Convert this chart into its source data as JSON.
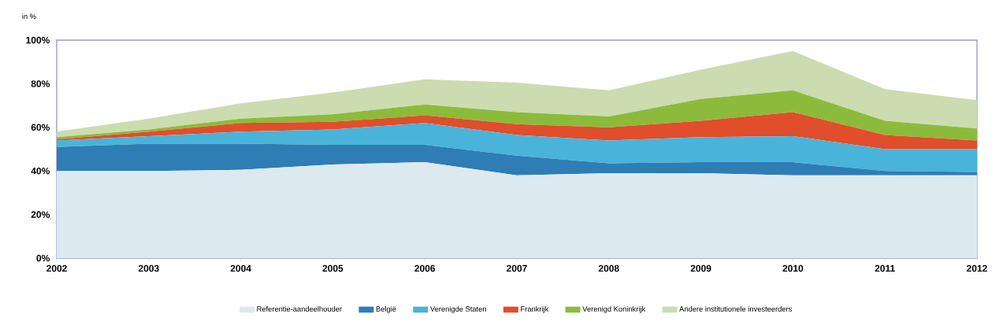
{
  "chart_data": {
    "type": "area",
    "stacked": true,
    "ylabel": "in %",
    "x": [
      2002,
      2003,
      2004,
      2005,
      2006,
      2007,
      2008,
      2009,
      2010,
      2011,
      2012
    ],
    "xlim": [
      2002,
      2012
    ],
    "xticks": [
      2002,
      2003,
      2004,
      2005,
      2006,
      2007,
      2008,
      2009,
      2010,
      2011,
      2012
    ],
    "ylim": [
      0,
      100
    ],
    "yticks": [
      {
        "value": 0,
        "label": "0%"
      },
      {
        "value": 20,
        "label": "20%"
      },
      {
        "value": 40,
        "label": "40%"
      },
      {
        "value": 60,
        "label": "60%"
      },
      {
        "value": 80,
        "label": "80%"
      },
      {
        "value": 100,
        "label": "100%"
      }
    ],
    "legend": "bottom",
    "series": [
      {
        "name": "Referentie-aandeelhouder",
        "color": "#dce9ef",
        "values": [
          40,
          40,
          40.5,
          43,
          44,
          38,
          39,
          39,
          38,
          38,
          38
        ]
      },
      {
        "name": "België",
        "color": "#2e7db5",
        "values": [
          11,
          12.5,
          12,
          9,
          8,
          9,
          4.5,
          5,
          6,
          2,
          1.5
        ]
      },
      {
        "name": "Verenigde Staten",
        "color": "#4ab3da",
        "values": [
          3,
          3.5,
          5.5,
          7,
          10,
          9.5,
          10.5,
          11.5,
          12,
          10,
          10.5
        ]
      },
      {
        "name": "Frankrijk",
        "color": "#e04e2c",
        "values": [
          0.5,
          2,
          4,
          3.5,
          3.5,
          5,
          6,
          7.5,
          11,
          6.5,
          4
        ]
      },
      {
        "name": "Verenigd Koninkrijk",
        "color": "#8cbb3c",
        "values": [
          1,
          1,
          2,
          3.5,
          5,
          5.5,
          5,
          10,
          10,
          6.5,
          5.5
        ]
      },
      {
        "name": "Andere institutionele investeerders",
        "color": "#cbdcb0",
        "values": [
          2.5,
          5,
          7,
          10,
          11.5,
          13.5,
          12,
          13.5,
          18,
          14.5,
          13
        ]
      }
    ]
  }
}
